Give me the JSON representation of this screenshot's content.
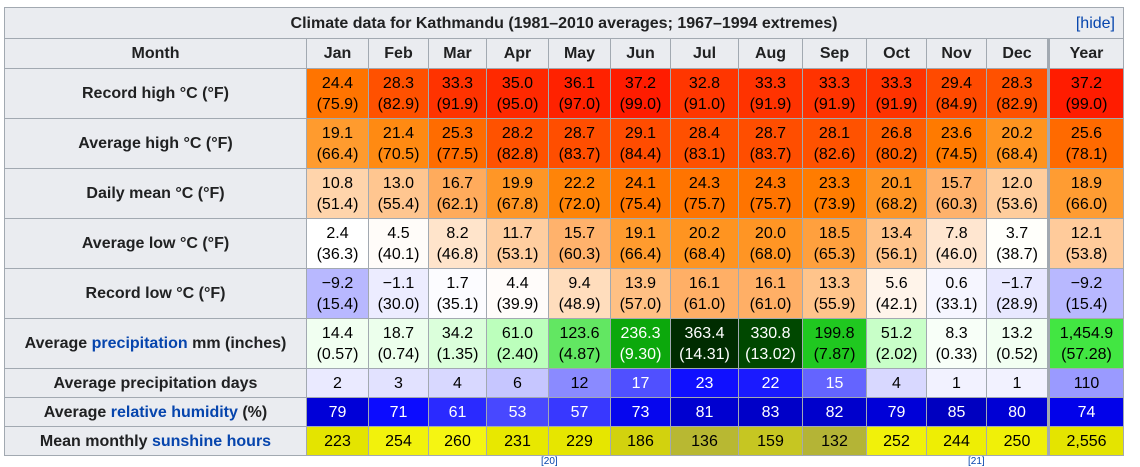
{
  "caption": {
    "title": "Climate data for Kathmandu (1981–2010 averages; 1967–1994 extremes)",
    "hide_label": "[hide]"
  },
  "header": {
    "month_label": "Month",
    "months": [
      "Jan",
      "Feb",
      "Mar",
      "Apr",
      "May",
      "Jun",
      "Jul",
      "Aug",
      "Sep",
      "Oct",
      "Nov",
      "Dec"
    ],
    "year_label": "Year"
  },
  "rows": [
    {
      "label": "Record high °C (°F)",
      "label_parts": [
        {
          "text": "Record high °C (°F)",
          "link": false
        }
      ],
      "type": "twoline",
      "cells": [
        {
          "main": "24.4",
          "sub": "(75.9)",
          "bg": "#ff7400",
          "fg": "#000000"
        },
        {
          "main": "28.3",
          "sub": "(82.9)",
          "bg": "#ff5100",
          "fg": "#000000"
        },
        {
          "main": "33.3",
          "sub": "(91.9)",
          "bg": "#ff3300",
          "fg": "#000000"
        },
        {
          "main": "35.0",
          "sub": "(95.0)",
          "bg": "#ff2900",
          "fg": "#000000"
        },
        {
          "main": "36.1",
          "sub": "(97.0)",
          "bg": "#ff2200",
          "fg": "#000000"
        },
        {
          "main": "37.2",
          "sub": "(99.0)",
          "bg": "#ff1c00",
          "fg": "#000000"
        },
        {
          "main": "32.8",
          "sub": "(91.0)",
          "bg": "#ff3600",
          "fg": "#000000"
        },
        {
          "main": "33.3",
          "sub": "(91.9)",
          "bg": "#ff3300",
          "fg": "#000000"
        },
        {
          "main": "33.3",
          "sub": "(91.9)",
          "bg": "#ff3300",
          "fg": "#000000"
        },
        {
          "main": "33.3",
          "sub": "(91.9)",
          "bg": "#ff3300",
          "fg": "#000000"
        },
        {
          "main": "29.4",
          "sub": "(84.9)",
          "bg": "#ff4a00",
          "fg": "#000000"
        },
        {
          "main": "28.3",
          "sub": "(82.9)",
          "bg": "#ff5100",
          "fg": "#000000"
        },
        {
          "main": "37.2",
          "sub": "(99.0)",
          "bg": "#ff1c00",
          "fg": "#000000"
        }
      ]
    },
    {
      "label": "Average high °C (°F)",
      "label_parts": [
        {
          "text": "Average high °C (°F)",
          "link": false
        }
      ],
      "type": "twoline",
      "cells": [
        {
          "main": "19.1",
          "sub": "(66.4)",
          "bg": "#ff9b2e",
          "fg": "#000000"
        },
        {
          "main": "21.4",
          "sub": "(70.5)",
          "bg": "#ff8a12",
          "fg": "#000000"
        },
        {
          "main": "25.3",
          "sub": "(77.5)",
          "bg": "#ff6c00",
          "fg": "#000000"
        },
        {
          "main": "28.2",
          "sub": "(82.8)",
          "bg": "#ff5200",
          "fg": "#000000"
        },
        {
          "main": "28.7",
          "sub": "(83.7)",
          "bg": "#ff4e00",
          "fg": "#000000"
        },
        {
          "main": "29.1",
          "sub": "(84.4)",
          "bg": "#ff4c00",
          "fg": "#000000"
        },
        {
          "main": "28.4",
          "sub": "(83.1)",
          "bg": "#ff5000",
          "fg": "#000000"
        },
        {
          "main": "28.7",
          "sub": "(83.7)",
          "bg": "#ff4e00",
          "fg": "#000000"
        },
        {
          "main": "28.1",
          "sub": "(82.6)",
          "bg": "#ff5200",
          "fg": "#000000"
        },
        {
          "main": "26.8",
          "sub": "(80.2)",
          "bg": "#ff5f00",
          "fg": "#000000"
        },
        {
          "main": "23.6",
          "sub": "(74.5)",
          "bg": "#ff7a00",
          "fg": "#000000"
        },
        {
          "main": "20.2",
          "sub": "(68.4)",
          "bg": "#ff9420",
          "fg": "#000000"
        },
        {
          "main": "25.6",
          "sub": "(78.1)",
          "bg": "#ff6a00",
          "fg": "#000000"
        }
      ]
    },
    {
      "label": "Daily mean °C (°F)",
      "label_parts": [
        {
          "text": "Daily mean °C (°F)",
          "link": false
        }
      ],
      "type": "twoline",
      "cells": [
        {
          "main": "10.8",
          "sub": "(51.4)",
          "bg": "#ffd4ab",
          "fg": "#000000"
        },
        {
          "main": "13.0",
          "sub": "(55.4)",
          "bg": "#ffc690",
          "fg": "#000000"
        },
        {
          "main": "16.7",
          "sub": "(62.1)",
          "bg": "#ffab5c",
          "fg": "#000000"
        },
        {
          "main": "19.9",
          "sub": "(67.8)",
          "bg": "#ff9626",
          "fg": "#000000"
        },
        {
          "main": "22.2",
          "sub": "(72.0)",
          "bg": "#ff8408",
          "fg": "#000000"
        },
        {
          "main": "24.1",
          "sub": "(75.4)",
          "bg": "#ff7600",
          "fg": "#000000"
        },
        {
          "main": "24.3",
          "sub": "(75.7)",
          "bg": "#ff7400",
          "fg": "#000000"
        },
        {
          "main": "24.3",
          "sub": "(75.7)",
          "bg": "#ff7400",
          "fg": "#000000"
        },
        {
          "main": "23.3",
          "sub": "(73.9)",
          "bg": "#ff7c00",
          "fg": "#000000"
        },
        {
          "main": "20.1",
          "sub": "(68.2)",
          "bg": "#ff9524",
          "fg": "#000000"
        },
        {
          "main": "15.7",
          "sub": "(60.3)",
          "bg": "#ffb26c",
          "fg": "#000000"
        },
        {
          "main": "12.0",
          "sub": "(53.6)",
          "bg": "#ffcd9c",
          "fg": "#000000"
        },
        {
          "main": "18.9",
          "sub": "(66.0)",
          "bg": "#ff9c32",
          "fg": "#000000"
        }
      ]
    },
    {
      "label": "Average low °C (°F)",
      "label_parts": [
        {
          "text": "Average low °C (°F)",
          "link": false
        }
      ],
      "type": "twoline",
      "cells": [
        {
          "main": "2.4",
          "sub": "(36.3)",
          "bg": "#ffffff",
          "fg": "#000000"
        },
        {
          "main": "4.5",
          "sub": "(40.1)",
          "bg": "#fffcf9",
          "fg": "#000000"
        },
        {
          "main": "8.2",
          "sub": "(46.8)",
          "bg": "#ffe4cb",
          "fg": "#000000"
        },
        {
          "main": "11.7",
          "sub": "(53.1)",
          "bg": "#ffcea0",
          "fg": "#000000"
        },
        {
          "main": "15.7",
          "sub": "(60.3)",
          "bg": "#ffb26c",
          "fg": "#000000"
        },
        {
          "main": "19.1",
          "sub": "(66.4)",
          "bg": "#ff9b2e",
          "fg": "#000000"
        },
        {
          "main": "20.2",
          "sub": "(68.4)",
          "bg": "#ff9420",
          "fg": "#000000"
        },
        {
          "main": "20.0",
          "sub": "(68.0)",
          "bg": "#ff9524",
          "fg": "#000000"
        },
        {
          "main": "18.5",
          "sub": "(65.3)",
          "bg": "#ffa03e",
          "fg": "#000000"
        },
        {
          "main": "13.4",
          "sub": "(56.1)",
          "bg": "#ffc48b",
          "fg": "#000000"
        },
        {
          "main": "7.8",
          "sub": "(46.0)",
          "bg": "#ffe6d0",
          "fg": "#000000"
        },
        {
          "main": "3.7",
          "sub": "(38.7)",
          "bg": "#fffffb",
          "fg": "#000000"
        },
        {
          "main": "12.1",
          "sub": "(53.8)",
          "bg": "#ffcb9b",
          "fg": "#000000"
        }
      ]
    },
    {
      "label": "Record low °C (°F)",
      "label_parts": [
        {
          "text": "Record low °C (°F)",
          "link": false
        }
      ],
      "type": "twoline",
      "cells": [
        {
          "main": "−9.2",
          "sub": "(15.4)",
          "bg": "#b8b8ff",
          "fg": "#000000"
        },
        {
          "main": "−1.1",
          "sub": "(30.0)",
          "bg": "#ececff",
          "fg": "#000000"
        },
        {
          "main": "1.7",
          "sub": "(35.1)",
          "bg": "#fcfcff",
          "fg": "#000000"
        },
        {
          "main": "4.4",
          "sub": "(39.9)",
          "bg": "#fffcfa",
          "fg": "#000000"
        },
        {
          "main": "9.4",
          "sub": "(48.9)",
          "bg": "#ffddbd",
          "fg": "#000000"
        },
        {
          "main": "13.9",
          "sub": "(57.0)",
          "bg": "#ffc084",
          "fg": "#000000"
        },
        {
          "main": "16.1",
          "sub": "(61.0)",
          "bg": "#ffaf66",
          "fg": "#000000"
        },
        {
          "main": "16.1",
          "sub": "(61.0)",
          "bg": "#ffaf66",
          "fg": "#000000"
        },
        {
          "main": "13.3",
          "sub": "(55.9)",
          "bg": "#ffc48b",
          "fg": "#000000"
        },
        {
          "main": "5.6",
          "sub": "(42.1)",
          "bg": "#fff4ea",
          "fg": "#000000"
        },
        {
          "main": "0.6",
          "sub": "(33.1)",
          "bg": "#f6f6ff",
          "fg": "#000000"
        },
        {
          "main": "−1.7",
          "sub": "(28.9)",
          "bg": "#e8e8ff",
          "fg": "#000000"
        },
        {
          "main": "−9.2",
          "sub": "(15.4)",
          "bg": "#b8b8ff",
          "fg": "#000000"
        }
      ]
    },
    {
      "label": "Average precipitation mm (inches)",
      "label_parts": [
        {
          "text": "Average ",
          "link": false
        },
        {
          "text": "precipitation",
          "link": true
        },
        {
          "text": " mm (inches)",
          "link": false
        }
      ],
      "type": "twoline",
      "cells": [
        {
          "main": "14.4",
          "sub": "(0.57)",
          "bg": "#f1fff1",
          "fg": "#000000"
        },
        {
          "main": "18.7",
          "sub": "(0.74)",
          "bg": "#ecffec",
          "fg": "#000000"
        },
        {
          "main": "34.2",
          "sub": "(1.35)",
          "bg": "#dbffdb",
          "fg": "#000000"
        },
        {
          "main": "61.0",
          "sub": "(2.40)",
          "bg": "#bcffbc",
          "fg": "#000000"
        },
        {
          "main": "123.6",
          "sub": "(4.87)",
          "bg": "#62e762",
          "fg": "#000000"
        },
        {
          "main": "236.3",
          "sub": "(9.30)",
          "bg": "#0ca80c",
          "fg": "#ffffff"
        },
        {
          "main": "363.4",
          "sub": "(14.31)",
          "bg": "#002c00",
          "fg": "#ffffff"
        },
        {
          "main": "330.8",
          "sub": "(13.02)",
          "bg": "#004800",
          "fg": "#ffffff"
        },
        {
          "main": "199.8",
          "sub": "(7.87)",
          "bg": "#20c820",
          "fg": "#000000"
        },
        {
          "main": "51.2",
          "sub": "(2.02)",
          "bg": "#c8ffc8",
          "fg": "#000000"
        },
        {
          "main": "8.3",
          "sub": "(0.33)",
          "bg": "#f8fff8",
          "fg": "#000000"
        },
        {
          "main": "13.2",
          "sub": "(0.52)",
          "bg": "#f2fff2",
          "fg": "#000000"
        },
        {
          "main": "1,454.9",
          "sub": "(57.28)",
          "bg": "#42e642",
          "fg": "#000000"
        }
      ]
    },
    {
      "label": "Average precipitation days",
      "label_parts": [
        {
          "text": "Average precipitation days",
          "link": false
        }
      ],
      "type": "oneline",
      "cells": [
        {
          "main": "2",
          "bg": "#eaeaff",
          "fg": "#000000"
        },
        {
          "main": "3",
          "bg": "#e2e2ff",
          "fg": "#000000"
        },
        {
          "main": "4",
          "bg": "#d8d8ff",
          "fg": "#000000"
        },
        {
          "main": "6",
          "bg": "#c6c6ff",
          "fg": "#000000"
        },
        {
          "main": "12",
          "bg": "#8a8aff",
          "fg": "#000000"
        },
        {
          "main": "17",
          "bg": "#5050ff",
          "fg": "#ffffff"
        },
        {
          "main": "23",
          "bg": "#1010ff",
          "fg": "#ffffff"
        },
        {
          "main": "22",
          "bg": "#1a1aff",
          "fg": "#ffffff"
        },
        {
          "main": "15",
          "bg": "#6464ff",
          "fg": "#ffffff"
        },
        {
          "main": "4",
          "bg": "#d8d8ff",
          "fg": "#000000"
        },
        {
          "main": "1",
          "bg": "#f2f2ff",
          "fg": "#000000"
        },
        {
          "main": "1",
          "bg": "#f2f2ff",
          "fg": "#000000"
        },
        {
          "main": "110",
          "bg": "#9a9aff",
          "fg": "#000000"
        }
      ]
    },
    {
      "label": "Average relative humidity (%)",
      "label_parts": [
        {
          "text": "Average ",
          "link": false
        },
        {
          "text": "relative humidity",
          "link": true
        },
        {
          "text": " (%)",
          "link": false
        }
      ],
      "type": "oneline",
      "cells": [
        {
          "main": "79",
          "bg": "#0000d8",
          "fg": "#ffffff"
        },
        {
          "main": "71",
          "bg": "#0c0cff",
          "fg": "#ffffff"
        },
        {
          "main": "61",
          "bg": "#2a2aff",
          "fg": "#ffffff"
        },
        {
          "main": "53",
          "bg": "#4848ff",
          "fg": "#ffffff"
        },
        {
          "main": "57",
          "bg": "#3838ff",
          "fg": "#ffffff"
        },
        {
          "main": "73",
          "bg": "#0606ee",
          "fg": "#ffffff"
        },
        {
          "main": "81",
          "bg": "#0000d0",
          "fg": "#ffffff"
        },
        {
          "main": "83",
          "bg": "#0000c8",
          "fg": "#ffffff"
        },
        {
          "main": "82",
          "bg": "#0000cc",
          "fg": "#ffffff"
        },
        {
          "main": "79",
          "bg": "#0000d8",
          "fg": "#ffffff"
        },
        {
          "main": "85",
          "bg": "#0000c0",
          "fg": "#ffffff"
        },
        {
          "main": "80",
          "bg": "#0000d4",
          "fg": "#ffffff"
        },
        {
          "main": "74",
          "bg": "#0202ea",
          "fg": "#ffffff"
        }
      ]
    },
    {
      "label": "Mean monthly sunshine hours",
      "label_parts": [
        {
          "text": "Mean monthly ",
          "link": false
        },
        {
          "text": "sunshine hours",
          "link": true
        }
      ],
      "type": "oneline",
      "cells": [
        {
          "main": "223",
          "bg": "#e4e400",
          "fg": "#000000"
        },
        {
          "main": "254",
          "bg": "#f2f20c",
          "fg": "#000000"
        },
        {
          "main": "260",
          "bg": "#f5f512",
          "fg": "#000000"
        },
        {
          "main": "231",
          "bg": "#e8e800",
          "fg": "#000000"
        },
        {
          "main": "229",
          "bg": "#e6e600",
          "fg": "#000000"
        },
        {
          "main": "186",
          "bg": "#d2d20e",
          "fg": "#000000"
        },
        {
          "main": "136",
          "bg": "#b8b832",
          "fg": "#000000"
        },
        {
          "main": "159",
          "bg": "#c6c622",
          "fg": "#000000"
        },
        {
          "main": "132",
          "bg": "#b4b436",
          "fg": "#000000"
        },
        {
          "main": "252",
          "bg": "#f1f10a",
          "fg": "#000000"
        },
        {
          "main": "244",
          "bg": "#eeee04",
          "fg": "#000000"
        },
        {
          "main": "250",
          "bg": "#f0f008",
          "fg": "#000000"
        },
        {
          "main": "2,556",
          "bg": "#e4e400",
          "fg": "#000000"
        }
      ]
    }
  ],
  "footer_refs": [
    "[20]",
    "[21]"
  ]
}
